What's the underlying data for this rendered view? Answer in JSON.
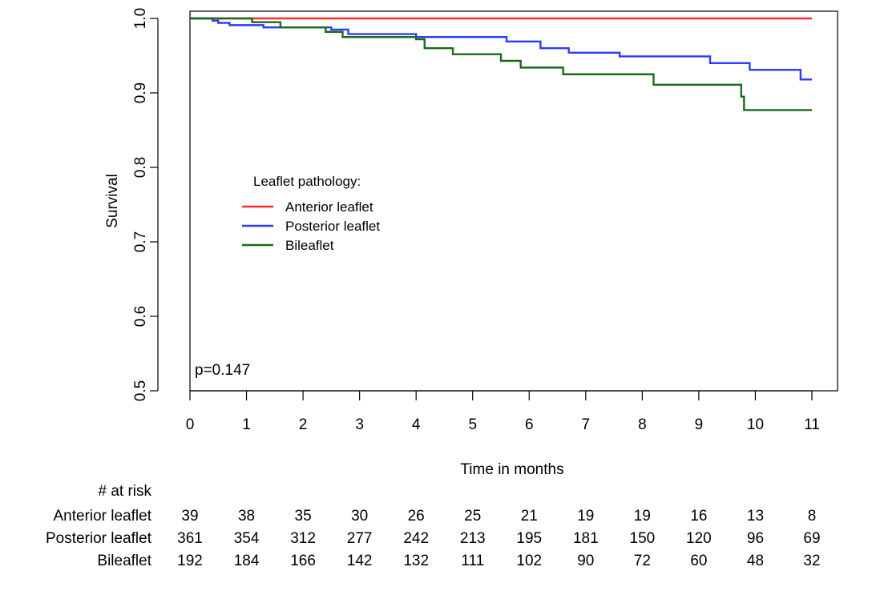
{
  "chart_data": {
    "type": "line",
    "xlabel": "Time in months",
    "ylabel": "Survival",
    "xlim": [
      0,
      11
    ],
    "ylim": [
      0.5,
      1.0
    ],
    "x_ticks": [
      0,
      1,
      2,
      3,
      4,
      5,
      6,
      7,
      8,
      9,
      10,
      11
    ],
    "y_ticks": [
      "0.5",
      "0.6",
      "0.7",
      "0.8",
      "0.9",
      "1.0"
    ],
    "grid": false,
    "annotation": "p=0.147",
    "legend": {
      "title": "Leaflet pathology:",
      "placement": "center-left"
    },
    "series": [
      {
        "name": "Anterior leaflet",
        "color": "#ff2a2a",
        "step_points": [
          [
            0,
            1.0
          ],
          [
            11,
            1.0
          ]
        ]
      },
      {
        "name": "Posterior leaflet",
        "color": "#2a3cff",
        "step_points": [
          [
            0,
            1.0
          ],
          [
            0.4,
            0.997
          ],
          [
            0.5,
            0.994
          ],
          [
            0.7,
            0.991
          ],
          [
            1.3,
            0.988
          ],
          [
            2.5,
            0.985
          ],
          [
            2.8,
            0.979
          ],
          [
            4.0,
            0.975
          ],
          [
            5.6,
            0.969
          ],
          [
            6.2,
            0.96
          ],
          [
            6.7,
            0.954
          ],
          [
            7.6,
            0.949
          ],
          [
            9.2,
            0.94
          ],
          [
            9.9,
            0.931
          ],
          [
            10.8,
            0.918
          ],
          [
            11.0,
            0.918
          ]
        ]
      },
      {
        "name": "Bileaflet",
        "color": "#1a6b1a",
        "step_points": [
          [
            0,
            1.0
          ],
          [
            1.1,
            0.995
          ],
          [
            1.6,
            0.988
          ],
          [
            2.4,
            0.982
          ],
          [
            2.7,
            0.975
          ],
          [
            4.0,
            0.972
          ],
          [
            4.15,
            0.96
          ],
          [
            4.65,
            0.952
          ],
          [
            5.5,
            0.943
          ],
          [
            5.85,
            0.934
          ],
          [
            6.6,
            0.925
          ],
          [
            8.2,
            0.911
          ],
          [
            9.75,
            0.895
          ],
          [
            9.8,
            0.877
          ],
          [
            11.0,
            0.877
          ]
        ]
      }
    ],
    "risk_table": {
      "header": "# at risk",
      "rows": [
        {
          "label": "Anterior leaflet",
          "values": [
            "39",
            "38",
            "35",
            "30",
            "26",
            "25",
            "21",
            "19",
            "19",
            "16",
            "13",
            "8"
          ]
        },
        {
          "label": "Posterior leaflet",
          "values": [
            "361",
            "354",
            "312",
            "277",
            "242",
            "213",
            "195",
            "181",
            "150",
            "120",
            "96",
            "69"
          ]
        },
        {
          "label": "Bileaflet",
          "values": [
            "192",
            "184",
            "166",
            "142",
            "132",
            "111",
            "102",
            "90",
            "72",
            "60",
            "48",
            "32"
          ]
        }
      ]
    }
  }
}
